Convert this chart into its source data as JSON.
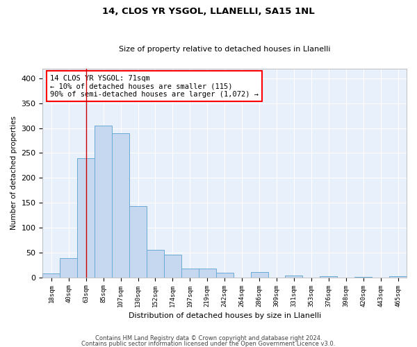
{
  "title1": "14, CLOS YR YSGOL, LLANELLI, SA15 1NL",
  "title2": "Size of property relative to detached houses in Llanelli",
  "xlabel": "Distribution of detached houses by size in Llanelli",
  "ylabel": "Number of detached properties",
  "bin_labels": [
    "18sqm",
    "40sqm",
    "63sqm",
    "85sqm",
    "107sqm",
    "130sqm",
    "152sqm",
    "174sqm",
    "197sqm",
    "219sqm",
    "242sqm",
    "264sqm",
    "286sqm",
    "309sqm",
    "331sqm",
    "353sqm",
    "376sqm",
    "398sqm",
    "420sqm",
    "443sqm",
    "465sqm"
  ],
  "bar_heights": [
    8,
    38,
    240,
    305,
    290,
    143,
    55,
    45,
    18,
    18,
    10,
    0,
    11,
    0,
    4,
    0,
    3,
    0,
    1,
    0,
    3
  ],
  "bar_color": "#c5d8f0",
  "bar_edge_color": "#6aaad4",
  "red_line_x": 2.0,
  "annotation_line1": "14 CLOS YR YSGOL: 71sqm",
  "annotation_line2": "← 10% of detached houses are smaller (115)",
  "annotation_line3": "90% of semi-detached houses are larger (1,072) →",
  "ylim": [
    0,
    420
  ],
  "yticks": [
    0,
    50,
    100,
    150,
    200,
    250,
    300,
    350,
    400
  ],
  "footer1": "Contains HM Land Registry data © Crown copyright and database right 2024.",
  "footer2": "Contains public sector information licensed under the Open Government Licence v3.0.",
  "background_color": "#e8f0fb",
  "fig_width": 6.0,
  "fig_height": 5.0
}
